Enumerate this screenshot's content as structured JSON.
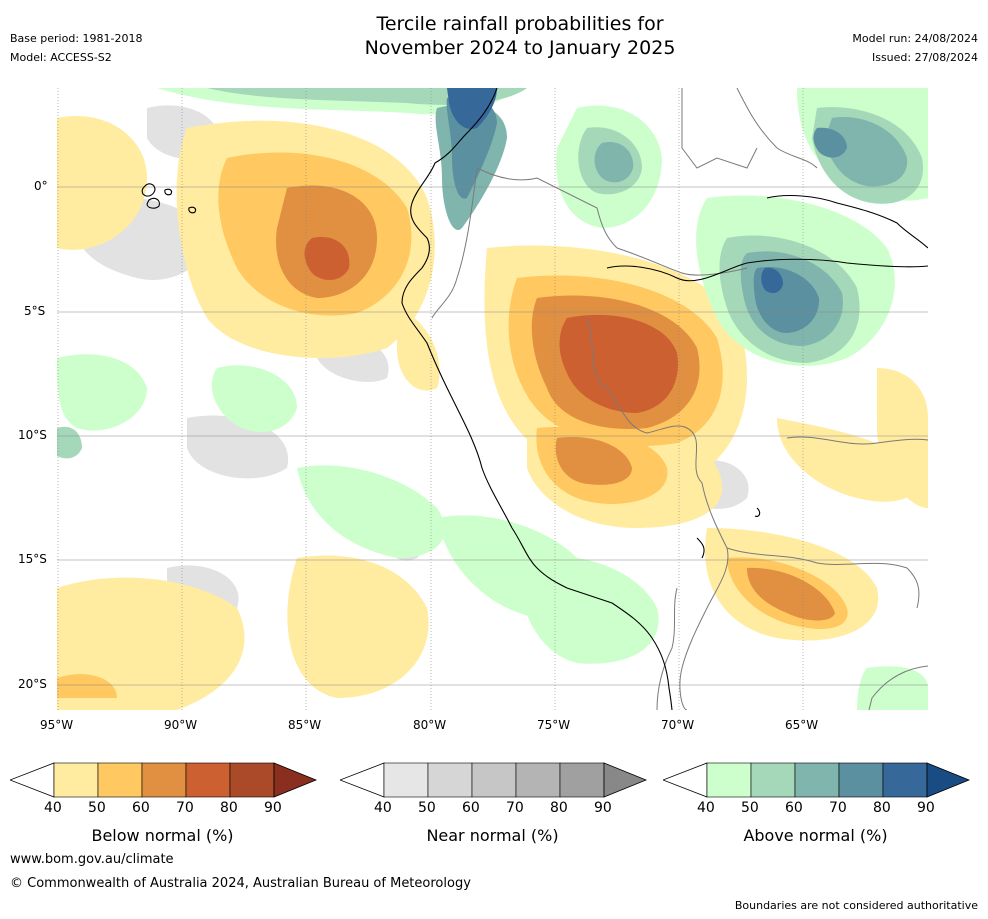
{
  "header": {
    "title_line1": "Tercile rainfall probabilities for",
    "title_line2": "November 2024 to January 2025",
    "base_period": "Base period: 1981-2018",
    "model": "Model: ACCESS-S2",
    "model_run": "Model run: 24/08/2024",
    "issued": "Issued: 27/08/2024"
  },
  "axes": {
    "lon_labels": [
      "95°W",
      "90°W",
      "85°W",
      "80°W",
      "75°W",
      "70°W",
      "65°W"
    ],
    "lat_labels": [
      "0°",
      "5°S",
      "10°S",
      "15°S",
      "20°S"
    ]
  },
  "legends": [
    {
      "label": "Below normal (%)",
      "ticks": [
        "40",
        "50",
        "60",
        "70",
        "80",
        "90"
      ],
      "colors": [
        "#ffeca0",
        "#ffc860",
        "#e09040",
        "#cc6030",
        "#aa4a28",
        "#8a2e20"
      ]
    },
    {
      "label": "Near normal (%)",
      "ticks": [
        "40",
        "50",
        "60",
        "70",
        "80",
        "90"
      ],
      "colors": [
        "#e6e6e6",
        "#d6d6d6",
        "#c6c6c6",
        "#b4b4b4",
        "#a0a0a0",
        "#888888"
      ]
    },
    {
      "label": "Above normal (%)",
      "ticks": [
        "40",
        "50",
        "60",
        "70",
        "80",
        "90"
      ],
      "colors": [
        "#ccffcc",
        "#a4d8b8",
        "#7fb5ad",
        "#5a90a0",
        "#36689a",
        "#1a4c84"
      ]
    }
  ],
  "footer": {
    "website": "www.bom.gov.au/climate",
    "copyright": "© Commonwealth of Australia 2024, Australian Bureau of Meteorology",
    "disclaimer": "Boundaries are not considered authoritative"
  }
}
